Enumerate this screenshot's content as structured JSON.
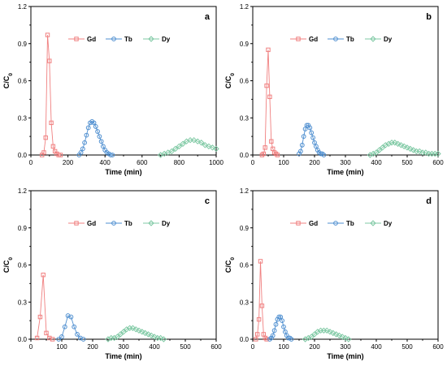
{
  "colors": {
    "Gd": "#f08080",
    "Tb": "#4f8fd0",
    "Dy": "#7fc9a4"
  },
  "chart_data": [
    {
      "panel": "a",
      "type": "line",
      "xlabel": "Time (min)",
      "ylabel": "C/C0",
      "xlim": [
        0,
        1000
      ],
      "ylim": [
        0,
        1.2
      ],
      "xticks": [
        0,
        200,
        400,
        600,
        800,
        1000
      ],
      "yticks": [
        0,
        0.3,
        0.6,
        0.9,
        1.2
      ],
      "legend": "top-center",
      "series": [
        {
          "name": "Gd",
          "marker": "square",
          "x": [
            60,
            70,
            80,
            90,
            100,
            110,
            120,
            130,
            140,
            150,
            160
          ],
          "y": [
            0,
            0.02,
            0.14,
            0.97,
            0.76,
            0.26,
            0.07,
            0.03,
            0.01,
            0,
            0
          ]
        },
        {
          "name": "Tb",
          "marker": "circle",
          "x": [
            260,
            270,
            280,
            290,
            300,
            310,
            320,
            330,
            340,
            350,
            360,
            370,
            380,
            390,
            400,
            410,
            420,
            430,
            440
          ],
          "y": [
            0,
            0.02,
            0.05,
            0.1,
            0.16,
            0.22,
            0.26,
            0.27,
            0.26,
            0.23,
            0.19,
            0.15,
            0.11,
            0.07,
            0.04,
            0.02,
            0.01,
            0,
            0
          ]
        },
        {
          "name": "Dy",
          "marker": "diamond",
          "x": [
            700,
            720,
            740,
            760,
            780,
            800,
            820,
            840,
            860,
            880,
            900,
            920,
            940,
            960,
            980,
            1000
          ],
          "y": [
            0,
            0.01,
            0.02,
            0.03,
            0.05,
            0.07,
            0.09,
            0.11,
            0.12,
            0.12,
            0.11,
            0.1,
            0.08,
            0.07,
            0.06,
            0.05
          ]
        }
      ]
    },
    {
      "panel": "b",
      "type": "line",
      "xlabel": "Time (min)",
      "ylabel": "C/C0",
      "xlim": [
        0,
        600
      ],
      "ylim": [
        0,
        1.2
      ],
      "xticks": [
        0,
        100,
        200,
        300,
        400,
        500,
        600
      ],
      "yticks": [
        0,
        0.3,
        0.6,
        0.9,
        1.2
      ],
      "legend": "top-center",
      "series": [
        {
          "name": "Gd",
          "marker": "square",
          "x": [
            30,
            35,
            40,
            45,
            50,
            55,
            60,
            65,
            70,
            75,
            80
          ],
          "y": [
            0,
            0.01,
            0.06,
            0.56,
            0.85,
            0.47,
            0.11,
            0.05,
            0.02,
            0.01,
            0
          ]
        },
        {
          "name": "Tb",
          "marker": "circle",
          "x": [
            150,
            155,
            160,
            165,
            170,
            175,
            180,
            185,
            190,
            195,
            200,
            205,
            210,
            215,
            220,
            225,
            230
          ],
          "y": [
            0.01,
            0.03,
            0.08,
            0.15,
            0.21,
            0.24,
            0.24,
            0.22,
            0.18,
            0.14,
            0.1,
            0.07,
            0.04,
            0.02,
            0.01,
            0.01,
            0
          ]
        },
        {
          "name": "Dy",
          "marker": "diamond",
          "x": [
            380,
            390,
            400,
            410,
            420,
            430,
            440,
            450,
            460,
            470,
            480,
            490,
            500,
            510,
            520,
            530,
            540,
            550,
            560,
            570,
            580,
            590,
            600
          ],
          "y": [
            0,
            0.01,
            0.02,
            0.04,
            0.06,
            0.08,
            0.09,
            0.1,
            0.1,
            0.09,
            0.08,
            0.07,
            0.06,
            0.05,
            0.04,
            0.03,
            0.03,
            0.02,
            0.02,
            0.01,
            0.01,
            0.01,
            0.01
          ]
        }
      ]
    },
    {
      "panel": "c",
      "type": "line",
      "xlabel": "Time (min)",
      "ylabel": "C/C0",
      "xlim": [
        0,
        600
      ],
      "ylim": [
        0,
        1.2
      ],
      "xticks": [
        0,
        100,
        200,
        300,
        400,
        500,
        600
      ],
      "yticks": [
        0,
        0.3,
        0.6,
        0.9,
        1.2
      ],
      "legend": "top-center",
      "series": [
        {
          "name": "Gd",
          "marker": "square",
          "x": [
            20,
            30,
            40,
            50,
            60,
            70
          ],
          "y": [
            0.01,
            0.18,
            0.52,
            0.05,
            0.01,
            0
          ]
        },
        {
          "name": "Tb",
          "marker": "circle",
          "x": [
            90,
            100,
            110,
            120,
            130,
            140,
            150,
            160,
            170
          ],
          "y": [
            0,
            0.02,
            0.1,
            0.19,
            0.18,
            0.1,
            0.04,
            0.01,
            0
          ]
        },
        {
          "name": "Dy",
          "marker": "diamond",
          "x": [
            250,
            260,
            270,
            280,
            290,
            300,
            310,
            320,
            330,
            340,
            350,
            360,
            370,
            380,
            390,
            400,
            410,
            420,
            430
          ],
          "y": [
            0,
            0.01,
            0.01,
            0.02,
            0.04,
            0.06,
            0.08,
            0.09,
            0.09,
            0.08,
            0.07,
            0.06,
            0.05,
            0.04,
            0.03,
            0.02,
            0.01,
            0.01,
            0
          ]
        }
      ]
    },
    {
      "panel": "d",
      "type": "line",
      "xlabel": "Time (min)",
      "ylabel": "C/C0",
      "xlim": [
        0,
        600
      ],
      "ylim": [
        0,
        1.2
      ],
      "xticks": [
        0,
        100,
        200,
        300,
        400,
        500,
        600
      ],
      "yticks": [
        0,
        0.3,
        0.6,
        0.9,
        1.2
      ],
      "legend": "top-center",
      "series": [
        {
          "name": "Gd",
          "marker": "square",
          "x": [
            10,
            15,
            20,
            25,
            30,
            35,
            40,
            45
          ],
          "y": [
            0,
            0.04,
            0.16,
            0.63,
            0.27,
            0.04,
            0.01,
            0
          ]
        },
        {
          "name": "Tb",
          "marker": "circle",
          "x": [
            55,
            60,
            65,
            70,
            75,
            80,
            85,
            90,
            95,
            100,
            105,
            110,
            115,
            120,
            125
          ],
          "y": [
            0,
            0.01,
            0.03,
            0.07,
            0.12,
            0.16,
            0.18,
            0.18,
            0.15,
            0.1,
            0.06,
            0.03,
            0.01,
            0.01,
            0
          ]
        },
        {
          "name": "Dy",
          "marker": "diamond",
          "x": [
            170,
            180,
            190,
            200,
            210,
            220,
            230,
            240,
            250,
            260,
            270,
            280,
            290,
            300,
            310
          ],
          "y": [
            0,
            0.01,
            0.02,
            0.04,
            0.06,
            0.07,
            0.07,
            0.07,
            0.06,
            0.05,
            0.04,
            0.03,
            0.02,
            0.01,
            0
          ]
        }
      ]
    }
  ]
}
